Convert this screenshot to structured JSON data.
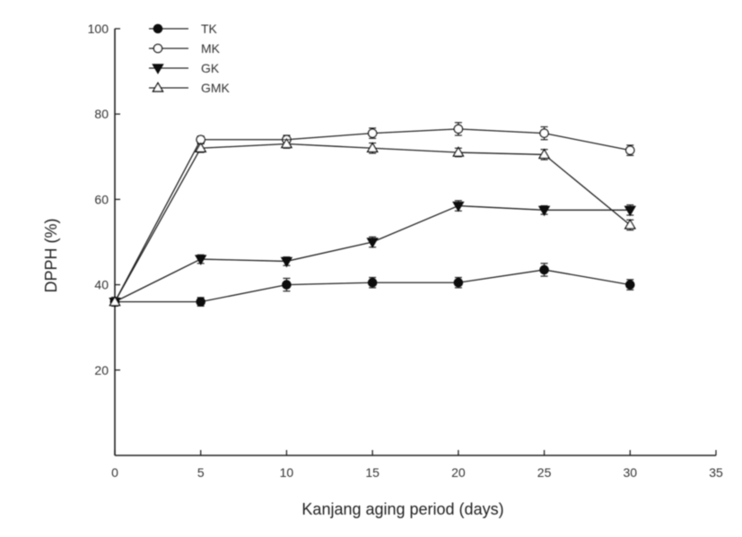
{
  "chart_data": {
    "type": "line",
    "xlabel": "Kanjang aging period (days)",
    "ylabel": "DPPH (%)",
    "xlim": [
      0,
      35
    ],
    "ylim": [
      0,
      100
    ],
    "xticks": [
      0,
      5,
      10,
      15,
      20,
      25,
      30,
      35
    ],
    "yticks": [
      20,
      40,
      60,
      80,
      100
    ],
    "x": [
      0,
      5,
      10,
      15,
      20,
      25,
      30
    ],
    "grid": false,
    "legend_position": "top-left",
    "series": [
      {
        "name": "TK",
        "marker": "filled-circle",
        "values": [
          36,
          36,
          40,
          40.5,
          40.5,
          43.5,
          40
        ],
        "errors": [
          1,
          1,
          1.5,
          1.2,
          1.2,
          1.5,
          1.2
        ]
      },
      {
        "name": "MK",
        "marker": "open-circle",
        "values": [
          36,
          74,
          74,
          75.5,
          76.5,
          75.5,
          71.5
        ],
        "errors": [
          1,
          0.8,
          1,
          1.2,
          1.5,
          1.5,
          1.2
        ]
      },
      {
        "name": "GK",
        "marker": "filled-triangle-down",
        "values": [
          36,
          46,
          45.5,
          50,
          58.5,
          57.5,
          57.5
        ],
        "errors": [
          1,
          1,
          1,
          1.2,
          1.2,
          1,
          1.2
        ]
      },
      {
        "name": "GMK",
        "marker": "open-triangle-up",
        "values": [
          36,
          72,
          73,
          72,
          71,
          70.5,
          54
        ],
        "errors": [
          1,
          1,
          1,
          1.2,
          1,
          1.2,
          1.2
        ]
      }
    ]
  }
}
